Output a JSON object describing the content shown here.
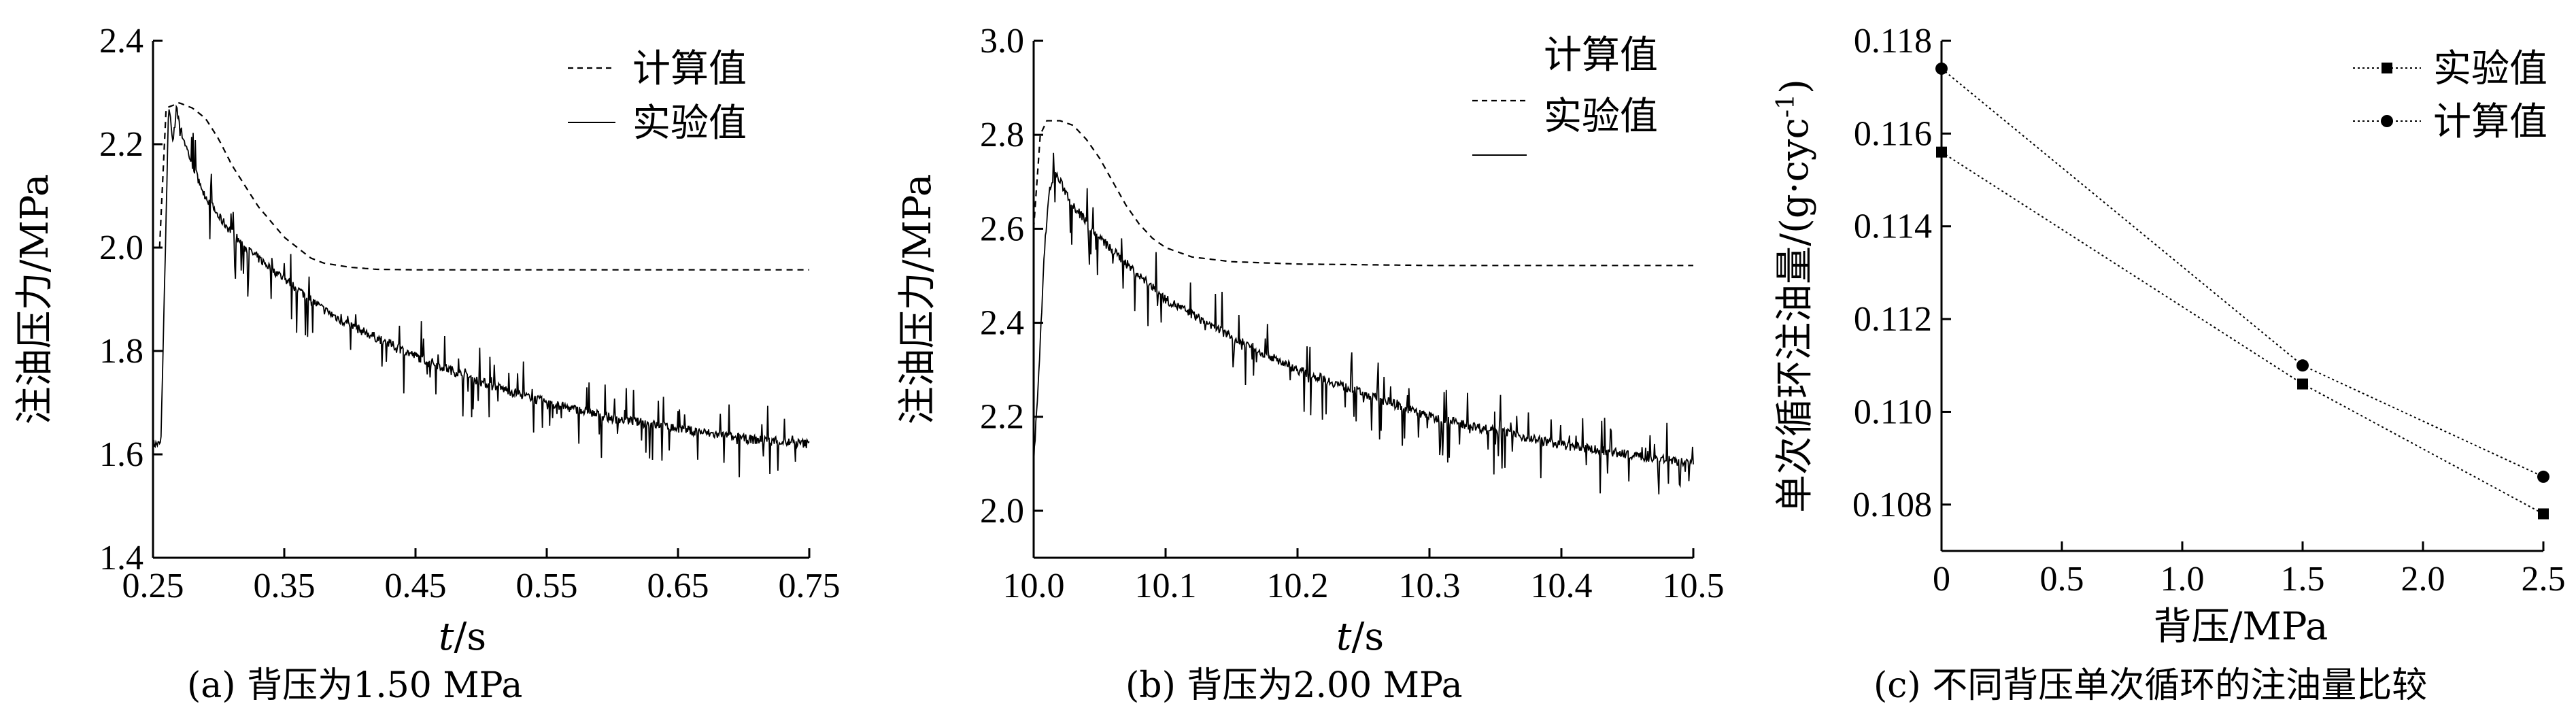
{
  "chart_data": [
    {
      "type": "line",
      "caption": "(a) 背压为1.50 MPa",
      "xlabel_italic": "t",
      "xlabel_unit": "/s",
      "ylabel": "注油压力/MPa",
      "xlim": [
        0.25,
        0.75
      ],
      "ylim": [
        1.4,
        2.4
      ],
      "xticks": [
        0.25,
        0.35,
        0.45,
        0.55,
        0.65,
        0.75
      ],
      "xtick_labels": [
        "0.25",
        "0.35",
        "0.45",
        "0.55",
        "0.65",
        "0.75"
      ],
      "yticks": [
        1.4,
        1.6,
        1.8,
        2.0,
        2.2,
        2.4
      ],
      "ytick_labels": [
        "1.4",
        "1.6",
        "1.8",
        "2.0",
        "2.2",
        "2.4"
      ],
      "legend": [
        "计算值",
        "实验值"
      ],
      "series": [
        {
          "name": "计算值",
          "style": "dashed",
          "x": [
            0.255,
            0.26,
            0.27,
            0.28,
            0.29,
            0.3,
            0.31,
            0.32,
            0.33,
            0.34,
            0.35,
            0.36,
            0.37,
            0.38,
            0.4,
            0.42,
            0.45,
            0.5,
            0.6,
            0.7,
            0.75
          ],
          "y": [
            2.0,
            2.27,
            2.28,
            2.27,
            2.25,
            2.21,
            2.16,
            2.12,
            2.08,
            2.05,
            2.02,
            2.0,
            1.98,
            1.97,
            1.962,
            1.958,
            1.957,
            1.957,
            1.957,
            1.957,
            1.957
          ]
        },
        {
          "name": "实验值",
          "style": "solid-noisy",
          "x": [
            0.25,
            0.256,
            0.262,
            0.265,
            0.268,
            0.272,
            0.28,
            0.29,
            0.3,
            0.32,
            0.35,
            0.38,
            0.4,
            0.45,
            0.5,
            0.55,
            0.6,
            0.65,
            0.7,
            0.75
          ],
          "y": [
            1.62,
            1.62,
            2.28,
            2.2,
            2.27,
            2.22,
            2.16,
            2.1,
            2.06,
            2.0,
            1.94,
            1.88,
            1.85,
            1.79,
            1.74,
            1.7,
            1.67,
            1.65,
            1.63,
            1.62
          ]
        }
      ]
    },
    {
      "type": "line",
      "caption": "(b) 背压为2.00 MPa",
      "xlabel_italic": "t",
      "xlabel_unit": "/s",
      "ylabel": "注油压力/MPa",
      "xlim": [
        10.0,
        10.5
      ],
      "ylim": [
        1.9,
        3.0
      ],
      "xticks": [
        10.0,
        10.1,
        10.2,
        10.3,
        10.4,
        10.5
      ],
      "xtick_labels": [
        "10.0",
        "10.1",
        "10.2",
        "10.3",
        "10.4",
        "10.5"
      ],
      "yticks": [
        2.0,
        2.2,
        2.4,
        2.6,
        2.8,
        3.0
      ],
      "ytick_labels": [
        "2.0",
        "2.2",
        "2.4",
        "2.6",
        "2.8",
        "3.0"
      ],
      "legend": [
        "计算值",
        "实验值"
      ],
      "series": [
        {
          "name": "计算值",
          "style": "dashed",
          "x": [
            10.0,
            10.005,
            10.01,
            10.02,
            10.03,
            10.04,
            10.05,
            10.06,
            10.07,
            10.08,
            10.09,
            10.1,
            10.12,
            10.15,
            10.2,
            10.3,
            10.4,
            10.5
          ],
          "y": [
            2.6,
            2.8,
            2.83,
            2.83,
            2.82,
            2.79,
            2.75,
            2.7,
            2.65,
            2.61,
            2.58,
            2.56,
            2.54,
            2.53,
            2.525,
            2.522,
            2.522,
            2.522
          ]
        },
        {
          "name": "实验值",
          "style": "solid-noisy",
          "x": [
            10.0,
            10.004,
            10.008,
            10.012,
            10.016,
            10.02,
            10.03,
            10.05,
            10.08,
            10.1,
            10.15,
            10.2,
            10.25,
            10.3,
            10.35,
            10.4,
            10.45,
            10.5
          ],
          "y": [
            2.1,
            2.3,
            2.55,
            2.68,
            2.72,
            2.7,
            2.65,
            2.58,
            2.5,
            2.45,
            2.37,
            2.3,
            2.25,
            2.2,
            2.17,
            2.14,
            2.12,
            2.1
          ]
        }
      ]
    },
    {
      "type": "line",
      "caption": "(c) 不同背压单次循环的注油量比较",
      "xlabel": "背压/MPa",
      "ylabel": "单次循环注油量/(g·cyc",
      "ylabel_sup": "-1",
      "ylabel_close": ")",
      "xlim": [
        0,
        2.5
      ],
      "ylim": [
        0.107,
        0.118
      ],
      "xticks": [
        0,
        0.5,
        1.0,
        1.5,
        2.0,
        2.5
      ],
      "xtick_labels": [
        "0",
        "0.5",
        "1.0",
        "1.5",
        "2.0",
        "2.5"
      ],
      "yticks": [
        0.108,
        0.11,
        0.112,
        0.114,
        0.116,
        0.118
      ],
      "ytick_labels": [
        "0.108",
        "0.110",
        "0.112",
        "0.114",
        "0.116",
        "0.118"
      ],
      "legend": [
        "实验值",
        "计算值"
      ],
      "series": [
        {
          "name": "实验值",
          "marker": "square",
          "x": [
            0,
            1.5,
            2.5
          ],
          "y": [
            0.1156,
            0.1106,
            0.1078
          ]
        },
        {
          "name": "计算值",
          "marker": "circle",
          "x": [
            0,
            1.5,
            2.5
          ],
          "y": [
            0.1174,
            0.111,
            0.1086
          ]
        }
      ]
    }
  ]
}
